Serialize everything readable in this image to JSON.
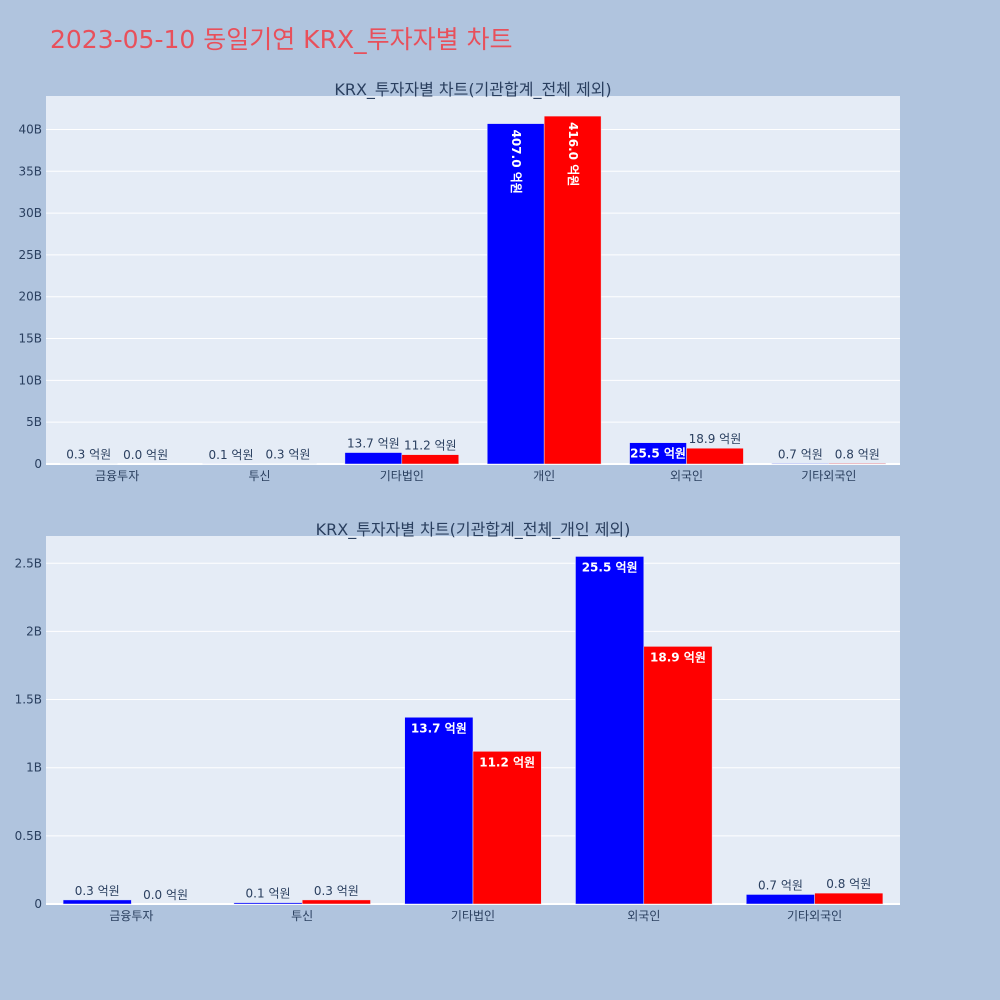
{
  "title": "2023-05-10 동일기연 KRX_투자자별 차트",
  "colors": {
    "series_a": "#0000ff",
    "series_b": "#ff0000",
    "title": "#e8505b"
  },
  "chart_data": [
    {
      "type": "bar",
      "title": "KRX_투자자별 차트(기관합계_전체 제외)",
      "categories": [
        "금융투자",
        "투신",
        "기타법인",
        "개인",
        "외국인",
        "기타외국인"
      ],
      "series": [
        {
          "values": [
            30000000,
            10000000,
            1370000000,
            40700000000,
            2550000000,
            70000000
          ],
          "labels": [
            "0.3 억원",
            "0.1 억원",
            "13.7 억원",
            "407.0 억원",
            "25.5 억원",
            "0.7 억원"
          ]
        },
        {
          "values": [
            0,
            30000000,
            1120000000,
            41600000000,
            1890000000,
            80000000
          ],
          "labels": [
            "0.0 억원",
            "0.3 억원",
            "11.2 억원",
            "416.0 억원",
            "18.9 억원",
            "0.8 억원"
          ]
        }
      ],
      "ylim": [
        0,
        44000000000
      ],
      "yticks": [
        0,
        5000000000,
        10000000000,
        15000000000,
        20000000000,
        25000000000,
        30000000000,
        35000000000,
        40000000000
      ],
      "ytick_labels": [
        "0",
        "5B",
        "10B",
        "15B",
        "20B",
        "25B",
        "30B",
        "35B",
        "40B"
      ],
      "grid": true
    },
    {
      "type": "bar",
      "title": "KRX_투자자별 차트(기관합계_전체_개인 제외)",
      "categories": [
        "금융투자",
        "투신",
        "기타법인",
        "외국인",
        "기타외국인"
      ],
      "series": [
        {
          "values": [
            30000000,
            10000000,
            1370000000,
            2550000000,
            70000000
          ],
          "labels": [
            "0.3 억원",
            "0.1 억원",
            "13.7 억원",
            "25.5 억원",
            "0.7 억원"
          ]
        },
        {
          "values": [
            0,
            30000000,
            1120000000,
            1890000000,
            80000000
          ],
          "labels": [
            "0.0 억원",
            "0.3 억원",
            "11.2 억원",
            "18.9 억원",
            "0.8 억원"
          ]
        }
      ],
      "ylim": [
        0,
        2700000000
      ],
      "yticks": [
        0,
        500000000,
        1000000000,
        1500000000,
        2000000000,
        2500000000
      ],
      "ytick_labels": [
        "0",
        "0.5B",
        "1B",
        "1.5B",
        "2B",
        "2.5B"
      ],
      "grid": true
    }
  ]
}
